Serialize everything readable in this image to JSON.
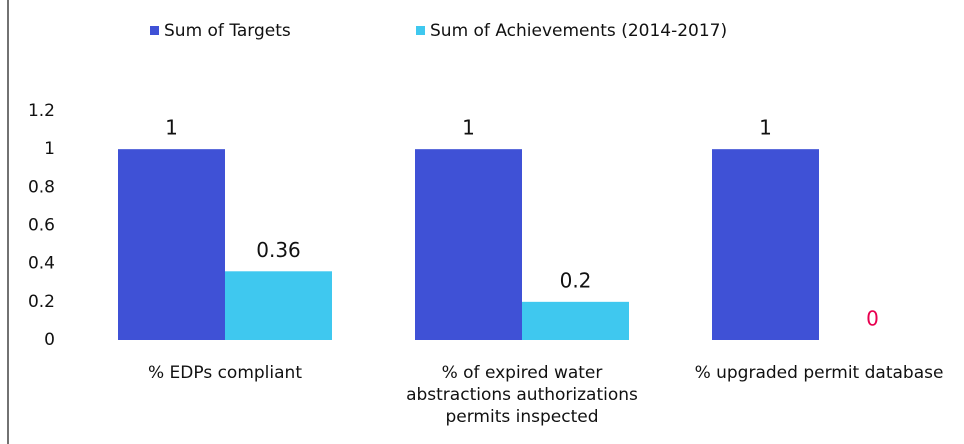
{
  "chart_data": {
    "type": "bar",
    "categories": [
      "% EDPs compliant",
      "% of expired water abstractions authorizations permits  inspected",
      "% upgraded permit database"
    ],
    "series": [
      {
        "name": "Sum of Targets",
        "color": "#3f51d6",
        "values": [
          1,
          1,
          1
        ]
      },
      {
        "name": "Sum of Achievements (2014-2017)",
        "color": "#3fc8ef",
        "values": [
          0.36,
          0.2,
          0
        ],
        "value_label_colors": [
          "#111111",
          "#111111",
          "#e8004f"
        ]
      }
    ],
    "ylim": [
      0,
      1.2
    ],
    "yticks": [
      0,
      0.2,
      0.4,
      0.6,
      0.8,
      1,
      1.2
    ],
    "grid": false,
    "legend": "top"
  }
}
